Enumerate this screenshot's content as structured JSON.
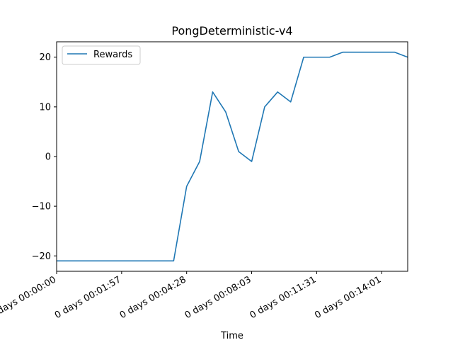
{
  "chart_data": {
    "type": "line",
    "title": "PongDeterministic-v4",
    "xlabel": "Time",
    "ylabel": "",
    "x_tick_labels": [
      "0 days 00:00:00",
      "0 days 00:01:57",
      "0 days 00:04:28",
      "0 days 00:08:03",
      "0 days 00:11:31",
      "0 days 00:14:01"
    ],
    "x_tick_positions": [
      0,
      5,
      10,
      15,
      20,
      25
    ],
    "xlim": [
      0,
      27
    ],
    "y_ticks": [
      -20,
      -10,
      0,
      10,
      20
    ],
    "ylim": [
      -23.1,
      23.1
    ],
    "grid": false,
    "legend_position": "upper left",
    "series": [
      {
        "name": "Rewards",
        "color": "#1f77b4",
        "x": [
          0,
          1,
          2,
          3,
          4,
          5,
          6,
          7,
          8,
          9,
          10,
          11,
          12,
          13,
          14,
          15,
          16,
          17,
          18,
          19,
          20,
          21,
          22,
          23,
          24,
          25,
          26,
          27
        ],
        "values": [
          -21,
          -21,
          -21,
          -21,
          -21,
          -21,
          -21,
          -21,
          -21,
          -21,
          -6,
          -1,
          13,
          9,
          1,
          -1,
          10,
          13,
          11,
          20,
          20,
          20,
          21,
          21,
          21,
          21,
          21,
          20
        ]
      }
    ]
  }
}
